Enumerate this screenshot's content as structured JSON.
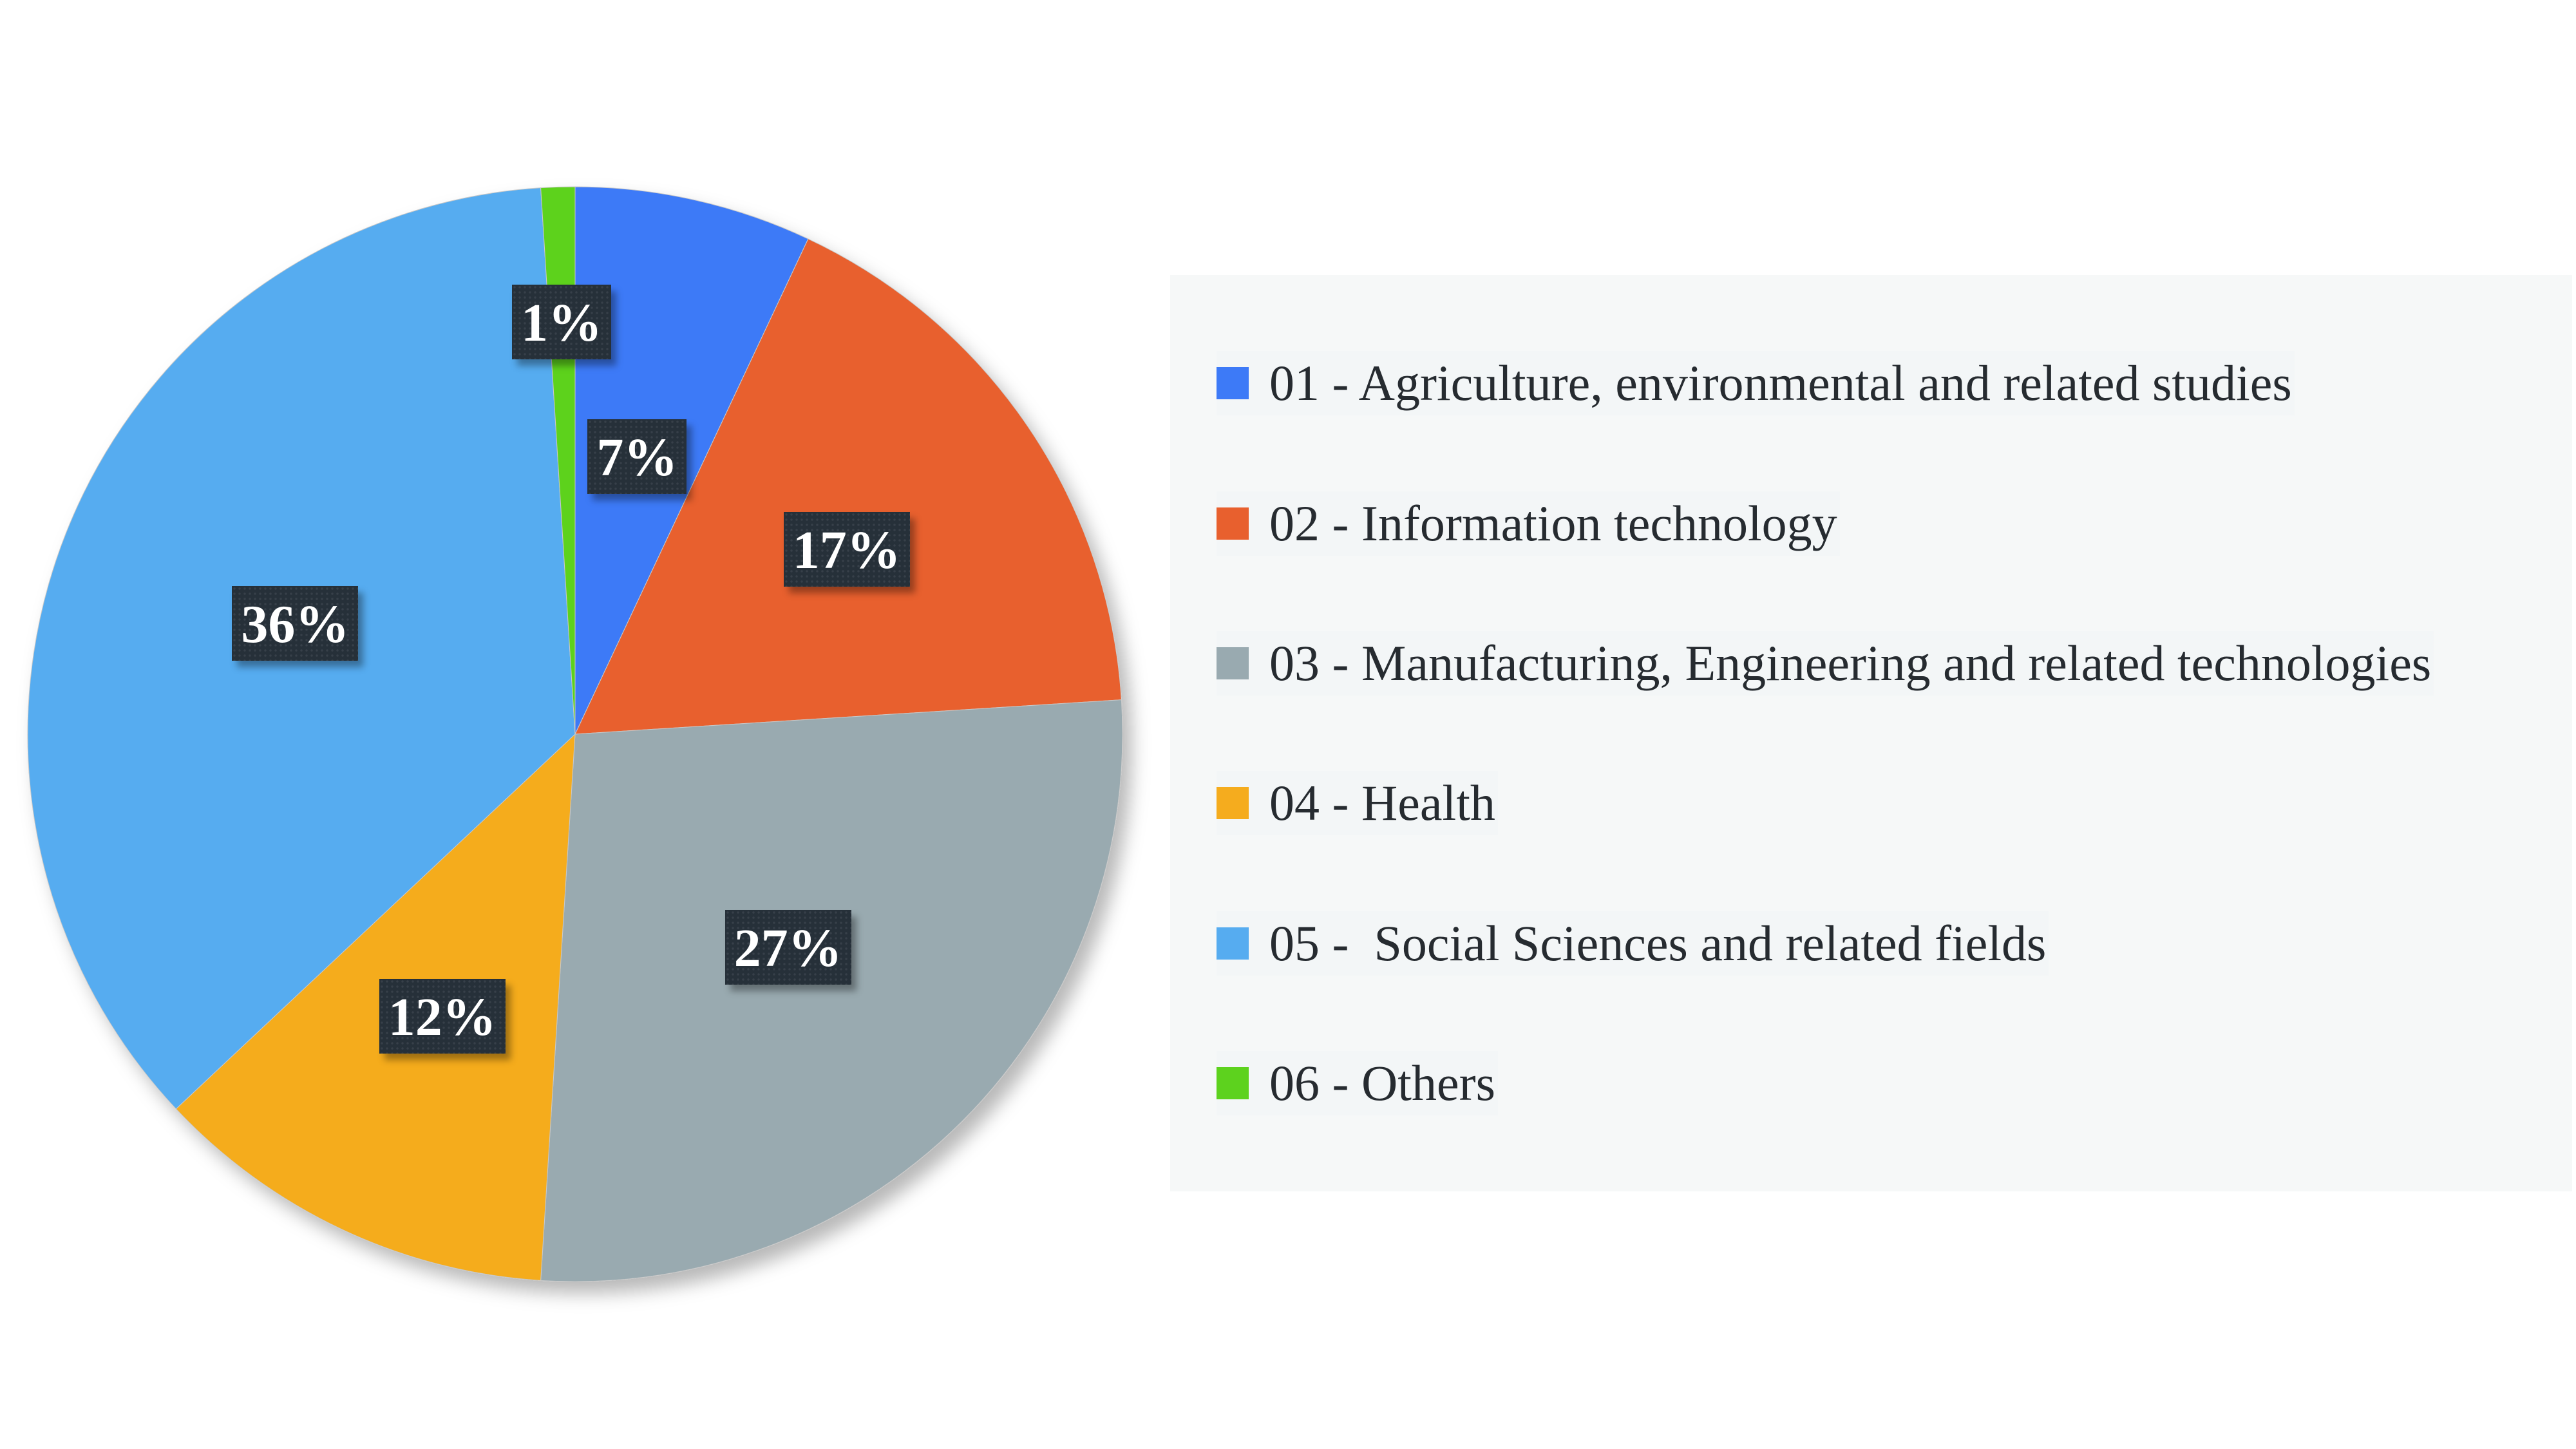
{
  "chart_data": {
    "type": "pie",
    "title": "",
    "legend_position": "right",
    "categories": [
      "01 - Agriculture, environmental and related studies",
      "02 - Information technology",
      "03 - Manufacturing, Engineering and related technologies",
      "04 - Health",
      "05 -  Social Sciences and related fields",
      "06 - Others"
    ],
    "values": [
      7,
      17,
      27,
      12,
      36,
      1
    ],
    "data_labels": [
      "7%",
      "17%",
      "27%",
      "12%",
      "36%",
      "1%"
    ],
    "colors": [
      "#3d7af7",
      "#e8602e",
      "#99aab0",
      "#f5ac1e",
      "#56acf0",
      "#5dd21e"
    ],
    "start_angle_deg": 0,
    "direction": "clockwise"
  }
}
